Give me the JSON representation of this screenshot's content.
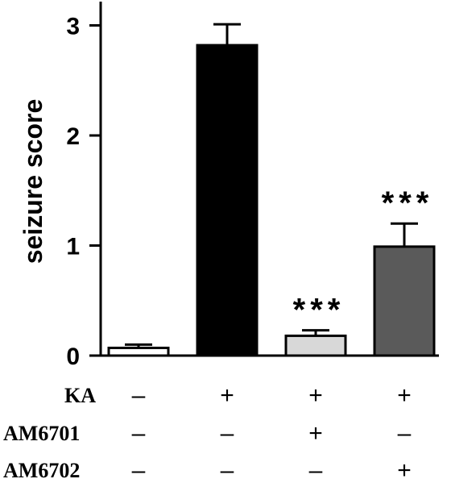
{
  "chart_data": {
    "type": "bar",
    "ylabel": "seizure score",
    "ylim": [
      0,
      3.2
    ],
    "yticks": [
      "0",
      "1",
      "2",
      "3"
    ],
    "grid": false,
    "series": [
      {
        "values": [
          0.07,
          2.82,
          0.18,
          0.99
        ],
        "errors": [
          0.03,
          0.19,
          0.05,
          0.21
        ],
        "colors": [
          "#ffffff",
          "#000000",
          "#d8d8d8",
          "#5a5a5a"
        ]
      }
    ],
    "annotations": [
      "",
      "",
      "***",
      "***"
    ],
    "treatments": [
      {
        "name": "KA",
        "signs": [
          "–",
          "+",
          "+",
          "+"
        ]
      },
      {
        "name": "AM6701",
        "signs": [
          "–",
          "–",
          "+",
          "–"
        ]
      },
      {
        "name": "AM6702",
        "signs": [
          "–",
          "–",
          "–",
          "+"
        ]
      }
    ]
  }
}
